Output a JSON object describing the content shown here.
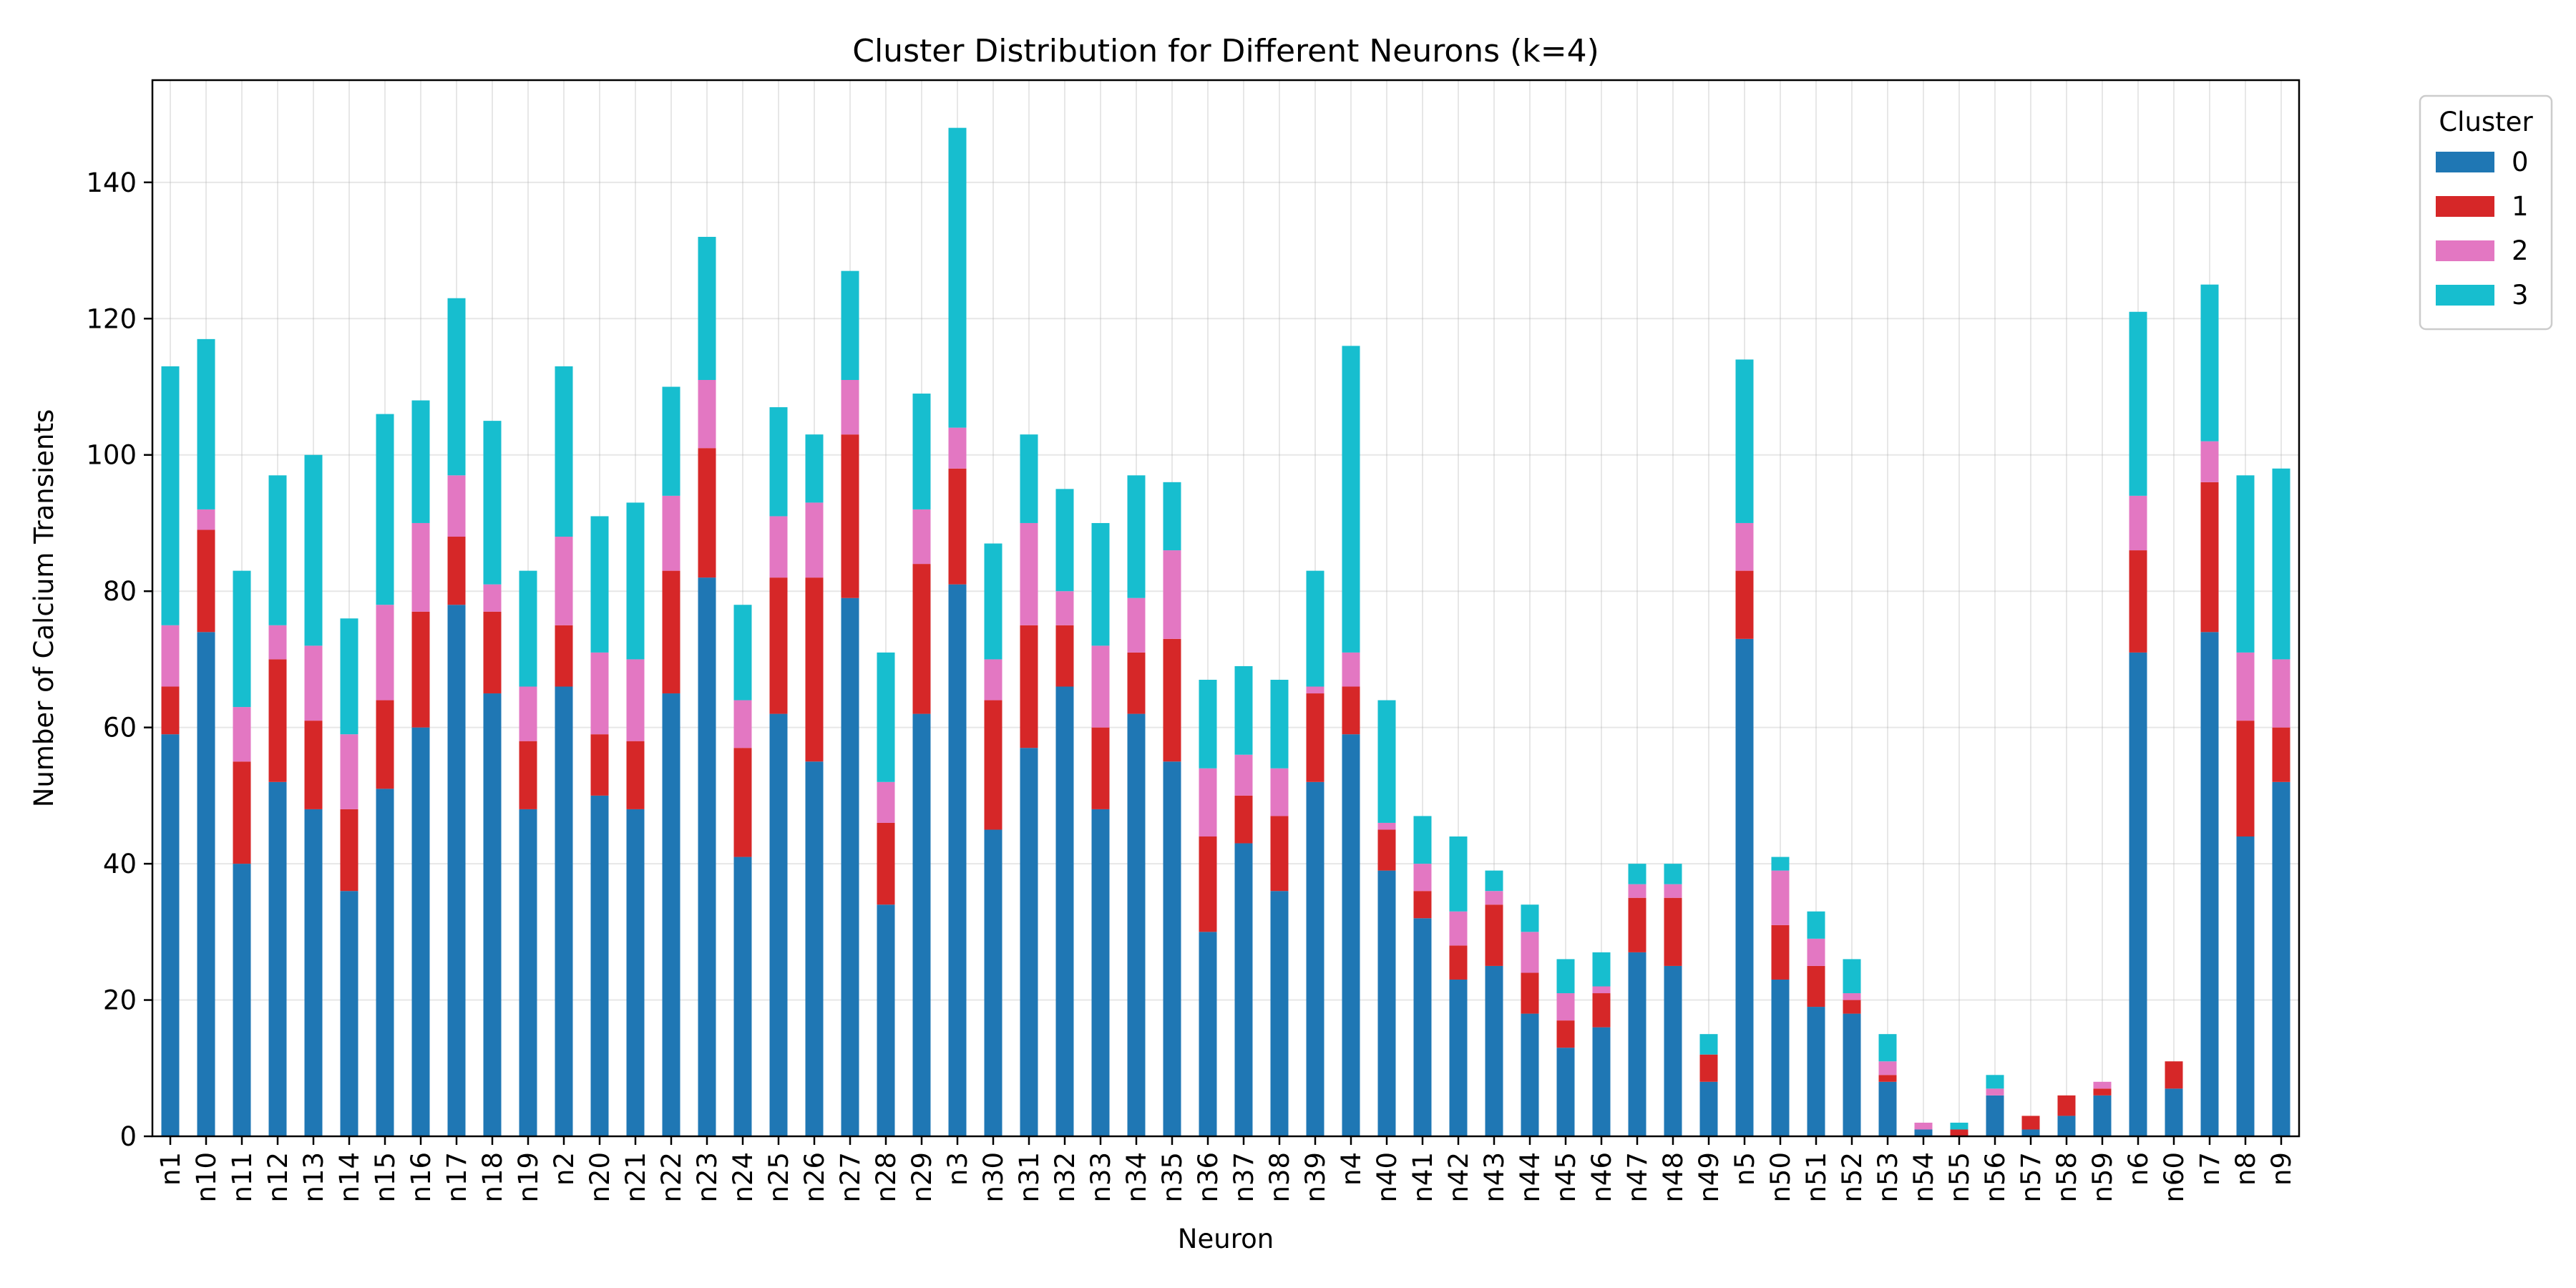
{
  "chart_data": {
    "type": "bar",
    "stacked": true,
    "title": "Cluster Distribution for Different Neurons (k=4)",
    "xlabel": "Neuron",
    "ylabel": "Number of Calcium Transients",
    "ylim": [
      0,
      155
    ],
    "yticks": [
      0,
      20,
      40,
      60,
      80,
      100,
      120,
      140
    ],
    "grid": true,
    "legend": {
      "title": "Cluster",
      "placement": "outside-top-right"
    },
    "categories": [
      "n1",
      "n10",
      "n11",
      "n12",
      "n13",
      "n14",
      "n15",
      "n16",
      "n17",
      "n18",
      "n19",
      "n2",
      "n20",
      "n21",
      "n22",
      "n23",
      "n24",
      "n25",
      "n26",
      "n27",
      "n28",
      "n29",
      "n3",
      "n30",
      "n31",
      "n32",
      "n33",
      "n34",
      "n35",
      "n36",
      "n37",
      "n38",
      "n39",
      "n4",
      "n40",
      "n41",
      "n42",
      "n43",
      "n44",
      "n45",
      "n46",
      "n47",
      "n48",
      "n49",
      "n5",
      "n50",
      "n51",
      "n52",
      "n53",
      "n54",
      "n55",
      "n56",
      "n57",
      "n58",
      "n59",
      "n6",
      "n60",
      "n7",
      "n8",
      "n9"
    ],
    "series": [
      {
        "name": "0",
        "color": "#1f77b4",
        "values": [
          59,
          74,
          40,
          52,
          48,
          36,
          51,
          60,
          78,
          65,
          48,
          66,
          50,
          48,
          65,
          82,
          41,
          62,
          55,
          79,
          34,
          62,
          81,
          45,
          57,
          66,
          48,
          62,
          55,
          30,
          43,
          36,
          52,
          59,
          39,
          32,
          23,
          25,
          18,
          13,
          16,
          27,
          25,
          8,
          73,
          23,
          19,
          18,
          8,
          1,
          0,
          6,
          1,
          3,
          6,
          71,
          7,
          74,
          44,
          52
        ]
      },
      {
        "name": "1",
        "color": "#d62728",
        "values": [
          7,
          15,
          15,
          18,
          13,
          12,
          13,
          17,
          10,
          12,
          10,
          9,
          9,
          10,
          18,
          19,
          16,
          20,
          27,
          24,
          12,
          22,
          17,
          19,
          18,
          9,
          12,
          9,
          18,
          14,
          7,
          11,
          13,
          7,
          6,
          4,
          5,
          9,
          6,
          4,
          5,
          8,
          10,
          4,
          10,
          8,
          6,
          2,
          1,
          0,
          1,
          0,
          2,
          3,
          1,
          15,
          4,
          22,
          17,
          8
        ]
      },
      {
        "name": "2",
        "color": "#e377c2",
        "values": [
          9,
          3,
          8,
          5,
          11,
          11,
          14,
          13,
          9,
          4,
          8,
          13,
          12,
          12,
          11,
          10,
          7,
          9,
          11,
          8,
          6,
          8,
          6,
          6,
          15,
          5,
          12,
          8,
          13,
          10,
          6,
          7,
          1,
          5,
          1,
          4,
          5,
          2,
          6,
          4,
          1,
          2,
          2,
          0,
          7,
          8,
          4,
          1,
          2,
          1,
          0,
          1,
          0,
          0,
          1,
          8,
          0,
          6,
          10,
          10
        ]
      },
      {
        "name": "3",
        "color": "#17becf",
        "values": [
          38,
          25,
          20,
          22,
          28,
          17,
          28,
          18,
          26,
          24,
          17,
          25,
          20,
          23,
          16,
          21,
          14,
          16,
          10,
          16,
          19,
          17,
          44,
          17,
          13,
          15,
          18,
          18,
          10,
          13,
          13,
          13,
          17,
          45,
          18,
          7,
          11,
          3,
          4,
          5,
          5,
          3,
          3,
          3,
          24,
          2,
          4,
          5,
          4,
          0,
          1,
          2,
          0,
          0,
          0,
          27,
          0,
          23,
          26,
          28
        ]
      }
    ]
  }
}
